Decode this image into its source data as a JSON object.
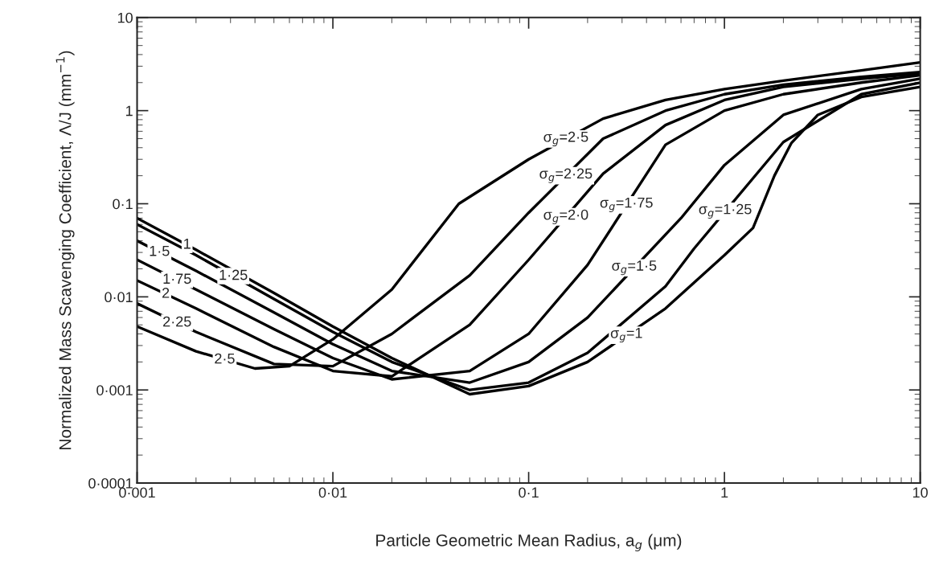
{
  "chart_data": {
    "type": "line",
    "xlabel": "Particle Geometric Mean Radius, a$_{g}$ (μm)",
    "ylabel": "Normalized Mass Scavenging Coefficient, Λ/J (mm$^{−1}$)",
    "log": "xy",
    "grid": false,
    "legend": false,
    "marker": "none",
    "line_style": "solid",
    "xlim": [
      0.001,
      10
    ],
    "ylim": [
      0.0001,
      10
    ],
    "xticks": [
      {
        "value": 0.001,
        "label": "0·001"
      },
      {
        "value": 0.01,
        "label": "0·01"
      },
      {
        "value": 0.1,
        "label": "0·1"
      },
      {
        "value": 1,
        "label": "1"
      },
      {
        "value": 10,
        "label": "10"
      }
    ],
    "yticks": [
      {
        "value": 0.0001,
        "label": "0·0001"
      },
      {
        "value": 0.001,
        "label": "0·001"
      },
      {
        "value": 0.01,
        "label": "0·01"
      },
      {
        "value": 0.1,
        "label": "0·1"
      },
      {
        "value": 1,
        "label": "1"
      },
      {
        "value": 10,
        "label": "10"
      }
    ],
    "series": [
      {
        "color": "#000000",
        "x": [
          0.001,
          0.002,
          0.005,
          0.01,
          0.02,
          0.05,
          0.1,
          0.2,
          0.5,
          1,
          1.4,
          1.8,
          2.2,
          3,
          5,
          10
        ],
        "values": [
          0.07,
          0.032,
          0.011,
          0.0048,
          0.0022,
          0.0009,
          0.0011,
          0.002,
          0.0075,
          0.028,
          0.055,
          0.2,
          0.45,
          0.9,
          1.4,
          1.8
        ]
      },
      {
        "color": "#000000",
        "x": [
          0.001,
          0.002,
          0.005,
          0.01,
          0.02,
          0.05,
          0.1,
          0.2,
          0.5,
          0.7,
          2,
          5,
          10
        ],
        "values": [
          0.06,
          0.028,
          0.0095,
          0.0042,
          0.002,
          0.001,
          0.0012,
          0.0025,
          0.013,
          0.033,
          0.46,
          1.5,
          2.0
        ]
      },
      {
        "color": "#000000",
        "x": [
          0.001,
          0.002,
          0.005,
          0.01,
          0.02,
          0.05,
          0.1,
          0.2,
          0.6,
          1,
          2,
          5,
          10
        ],
        "values": [
          0.04,
          0.019,
          0.0068,
          0.0031,
          0.0016,
          0.0012,
          0.002,
          0.006,
          0.07,
          0.26,
          0.9,
          1.7,
          2.2
        ]
      },
      {
        "color": "#000000",
        "x": [
          0.001,
          0.002,
          0.005,
          0.01,
          0.02,
          0.05,
          0.1,
          0.2,
          0.5,
          1,
          2,
          5,
          10
        ],
        "values": [
          0.025,
          0.012,
          0.0045,
          0.0022,
          0.0013,
          0.0016,
          0.004,
          0.022,
          0.43,
          1.0,
          1.5,
          2.0,
          2.4
        ]
      },
      {
        "color": "#000000",
        "x": [
          0.001,
          0.002,
          0.005,
          0.01,
          0.02,
          0.05,
          0.1,
          0.24,
          0.5,
          1,
          2,
          5,
          10
        ],
        "values": [
          0.015,
          0.0075,
          0.0029,
          0.0016,
          0.0014,
          0.005,
          0.025,
          0.21,
          0.7,
          1.3,
          1.8,
          2.2,
          2.5
        ]
      },
      {
        "color": "#000000",
        "x": [
          0.001,
          0.002,
          0.005,
          0.01,
          0.02,
          0.05,
          0.1,
          0.24,
          0.5,
          1,
          2,
          5,
          10
        ],
        "values": [
          0.0085,
          0.0042,
          0.0019,
          0.0018,
          0.004,
          0.017,
          0.08,
          0.5,
          1.0,
          1.5,
          1.9,
          2.3,
          2.6
        ]
      },
      {
        "color": "#000000",
        "x": [
          0.001,
          0.002,
          0.004,
          0.006,
          0.01,
          0.02,
          0.044,
          0.1,
          0.24,
          0.5,
          1,
          2,
          5,
          10
        ],
        "values": [
          0.0048,
          0.0026,
          0.0017,
          0.0018,
          0.0035,
          0.012,
          0.1,
          0.3,
          0.82,
          1.3,
          1.7,
          2.1,
          2.7,
          3.3
        ]
      }
    ],
    "annotations": [
      {
        "text": "σ$_{g}$=2·5",
        "x": 0.155,
        "y": 0.496
      },
      {
        "text": "σ$_{g}$=2·25",
        "x": 0.155,
        "y": 0.2
      },
      {
        "text": "σ$_{g}$=2·0",
        "x": 0.155,
        "y": 0.0724
      },
      {
        "text": "σ$_{g}$=1·75",
        "x": 0.316,
        "y": 0.0972
      },
      {
        "text": "σ$_{g}$=1·5",
        "x": 0.346,
        "y": 0.0205
      },
      {
        "text": "σ$_{g}$=1·25",
        "x": 1.01,
        "y": 0.083
      },
      {
        "text": "σ$_{g}$=1",
        "x": 0.316,
        "y": 0.00387
      },
      {
        "text": "1",
        "x": 0.0018,
        "y": 0.0361
      },
      {
        "text": "1·25",
        "x": 0.0031,
        "y": 0.0167
      },
      {
        "text": "1·5",
        "x": 0.0013,
        "y": 0.0302
      },
      {
        "text": "1·75",
        "x": 0.0016,
        "y": 0.0152
      },
      {
        "text": "2",
        "x": 0.0014,
        "y": 0.0107
      },
      {
        "text": "2·25",
        "x": 0.0016,
        "y": 0.00527
      },
      {
        "text": "2·5",
        "x": 0.0028,
        "y": 0.00211
      }
    ]
  }
}
